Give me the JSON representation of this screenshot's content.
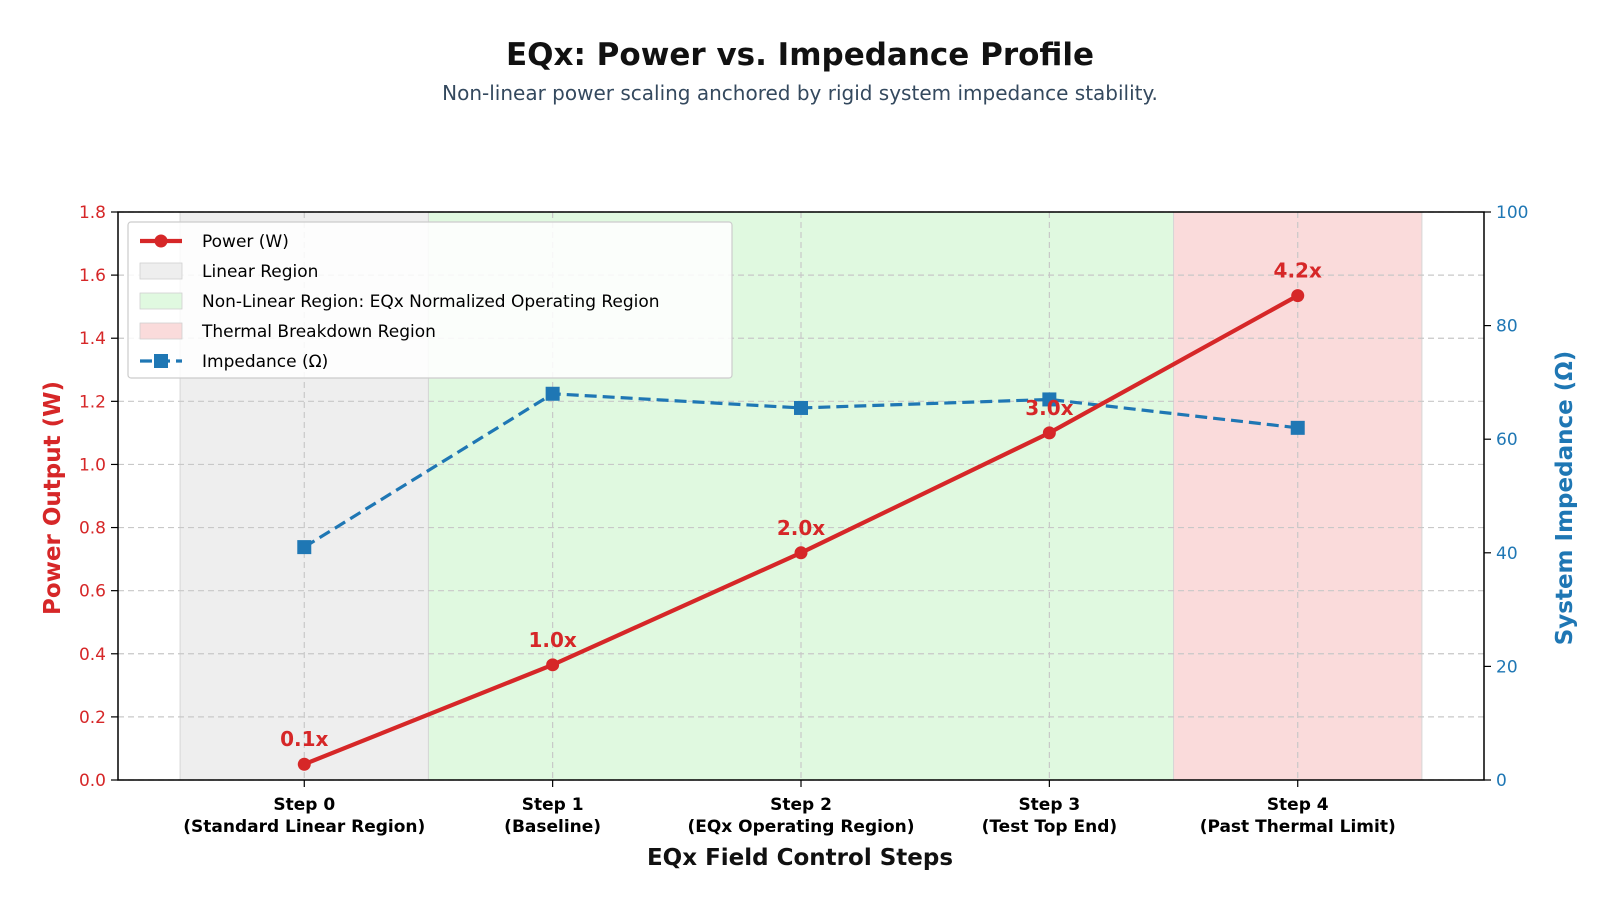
{
  "chart_data": {
    "type": "line",
    "title": "EQx: Power vs. Impedance Profile",
    "subtitle": "Non-linear power scaling anchored by rigid system impedance stability.",
    "xlabel": "EQx Field Control Steps",
    "ylabel_left": "Power Output (W)",
    "ylabel_right": "System Impedance (Ω)",
    "categories": [
      [
        "Step 0",
        "(Standard Linear Region)"
      ],
      [
        "Step 1",
        "(Baseline)"
      ],
      [
        "Step 2",
        "(EQx Operating Region)"
      ],
      [
        "Step 3",
        "(Test Top End)"
      ],
      [
        "Step 4",
        "(Past Thermal Limit)"
      ]
    ],
    "ylim_left": [
      0,
      1.8
    ],
    "yticks_left": [
      "0.0",
      "0.2",
      "0.4",
      "0.6",
      "0.8",
      "1.0",
      "1.2",
      "1.4",
      "1.6",
      "1.8"
    ],
    "ylim_right": [
      0,
      100
    ],
    "yticks_right": [
      "0",
      "20",
      "40",
      "60",
      "80",
      "100"
    ],
    "grid": true,
    "legend_position": "top-left",
    "series": [
      {
        "name": "Power (W)",
        "axis": "left",
        "style": "solid",
        "marker": "circle",
        "color": "#d62728",
        "values": [
          0.05,
          0.365,
          0.72,
          1.1,
          1.535
        ],
        "labels": [
          "0.1x",
          "1.0x",
          "2.0x",
          "3.0x",
          "4.2x"
        ]
      },
      {
        "name": "Impedance (Ω)",
        "axis": "right",
        "style": "dashed",
        "marker": "square",
        "color": "#1f77b4",
        "values": [
          41,
          68,
          65.5,
          67,
          62
        ]
      }
    ],
    "regions": [
      {
        "name": "Linear Region",
        "from": -0.5,
        "to": 0.5,
        "color": "#eeeeee"
      },
      {
        "name": "Non-Linear Region: EQx Normalized Operating Region",
        "from": 0.5,
        "to": 3.5,
        "color": "#e0f9e0"
      },
      {
        "name": "Thermal Breakdown Region",
        "from": 3.5,
        "to": 4.5,
        "color": "#fadbdb"
      }
    ]
  }
}
